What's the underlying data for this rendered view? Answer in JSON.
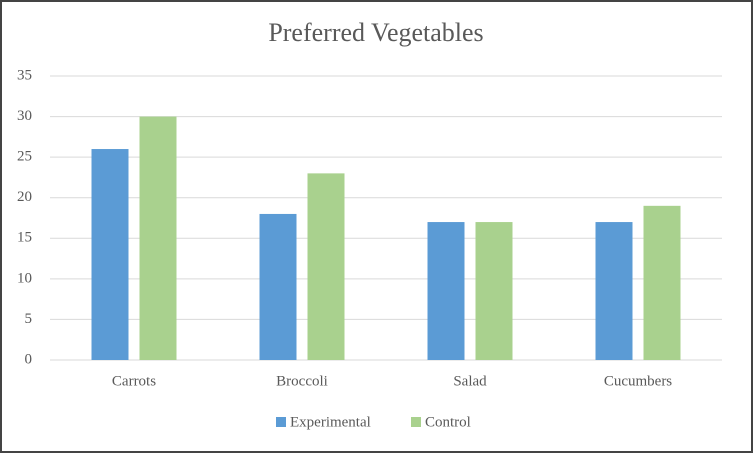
{
  "chart_data": {
    "type": "bar",
    "title": "Preferred Vegetables",
    "categories": [
      "Carrots",
      "Broccoli",
      "Salad",
      "Cucumbers"
    ],
    "series": [
      {
        "name": "Experimental",
        "color": "#5b9bd5",
        "values": [
          26,
          18,
          17,
          17
        ]
      },
      {
        "name": "Control",
        "color": "#a9d18e",
        "values": [
          30,
          23,
          17,
          19
        ]
      }
    ],
    "ylim": [
      0,
      35
    ],
    "yticks": [
      0,
      5,
      10,
      15,
      20,
      25,
      30,
      35
    ],
    "grid": true,
    "legend": "bottom"
  }
}
